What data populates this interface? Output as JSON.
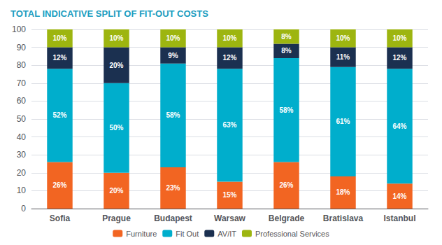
{
  "chart_data": {
    "type": "bar",
    "title": "TOTAL INDICATIVE SPLIT OF FIT-OUT COSTS",
    "categories": [
      "Sofia",
      "Prague",
      "Budapest",
      "Warsaw",
      "Belgrade",
      "Bratislava",
      "Istanbul"
    ],
    "series": [
      {
        "name": "Furniture",
        "color": "#F26522",
        "values": [
          26,
          20,
          23,
          15,
          26,
          18,
          14
        ],
        "value_labels": [
          "26%",
          "20%",
          "23%",
          "15%",
          "26%",
          "18%",
          "14%"
        ]
      },
      {
        "name": "Fit Out",
        "color": "#00AECC",
        "values": [
          52,
          50,
          58,
          63,
          58,
          61,
          64
        ],
        "value_labels": [
          "52%",
          "50%",
          "58%",
          "63%",
          "58%",
          "61%",
          "64%"
        ]
      },
      {
        "name": "AV/IT",
        "color": "#1B3050",
        "values": [
          12,
          20,
          9,
          12,
          8,
          11,
          12
        ],
        "value_labels": [
          "12%",
          "20%",
          "9%",
          "12%",
          "8%",
          "11%",
          "12%"
        ]
      },
      {
        "name": "Professional Services",
        "color": "#9DB510",
        "values": [
          10,
          10,
          10,
          10,
          8,
          10,
          10
        ],
        "value_labels": [
          "10%",
          "10%",
          "10%",
          "10%",
          "8%",
          "10%",
          "10%"
        ]
      }
    ],
    "ylim": [
      0,
      100
    ],
    "yticks": [
      0,
      10,
      20,
      30,
      40,
      50,
      60,
      70,
      80,
      90,
      100
    ],
    "stacked": true,
    "data_labels": true,
    "grid": true,
    "legend": "bottom"
  }
}
